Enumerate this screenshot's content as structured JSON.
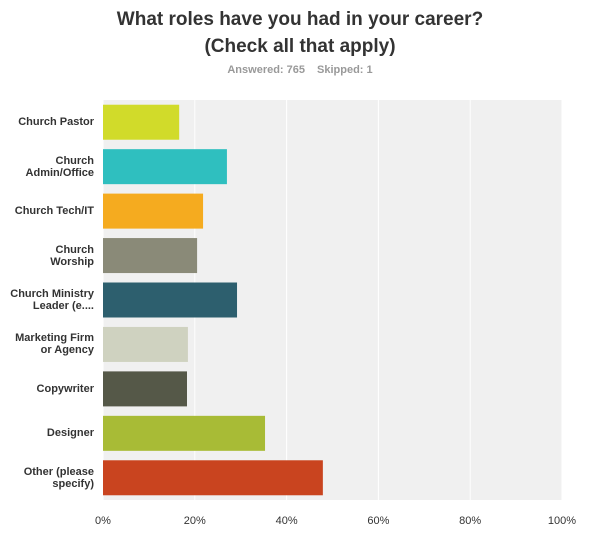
{
  "chart_data": {
    "type": "bar",
    "orientation": "horizontal",
    "title": "What roles have you had in your career? (Check all that apply)",
    "answered": "Answered: 765",
    "skipped": "Skipped: 1",
    "categories": [
      "Church Pastor",
      "Church Admin/Office",
      "Church Tech/IT",
      "Church Worship",
      "Church Ministry Leader (e....",
      "Marketing Firm or Agency",
      "Copywriter",
      "Designer",
      "Other (please specify)"
    ],
    "values": [
      16.6,
      27.0,
      21.8,
      20.5,
      29.2,
      18.5,
      18.3,
      35.3,
      47.9
    ],
    "colors": [
      "#d1db2a",
      "#2fbfbf",
      "#f5ab1f",
      "#8a8a78",
      "#2d5f6e",
      "#cfd2c0",
      "#555848",
      "#a8bb36",
      "#c9441f"
    ],
    "xlim": [
      0,
      100
    ],
    "xticks": [
      {
        "value": 0,
        "label": "0%"
      },
      {
        "value": 20,
        "label": "20%"
      },
      {
        "value": 40,
        "label": "40%"
      },
      {
        "value": 60,
        "label": "60%"
      },
      {
        "value": 80,
        "label": "80%"
      },
      {
        "value": 100,
        "label": "100%"
      }
    ],
    "grid": true
  }
}
